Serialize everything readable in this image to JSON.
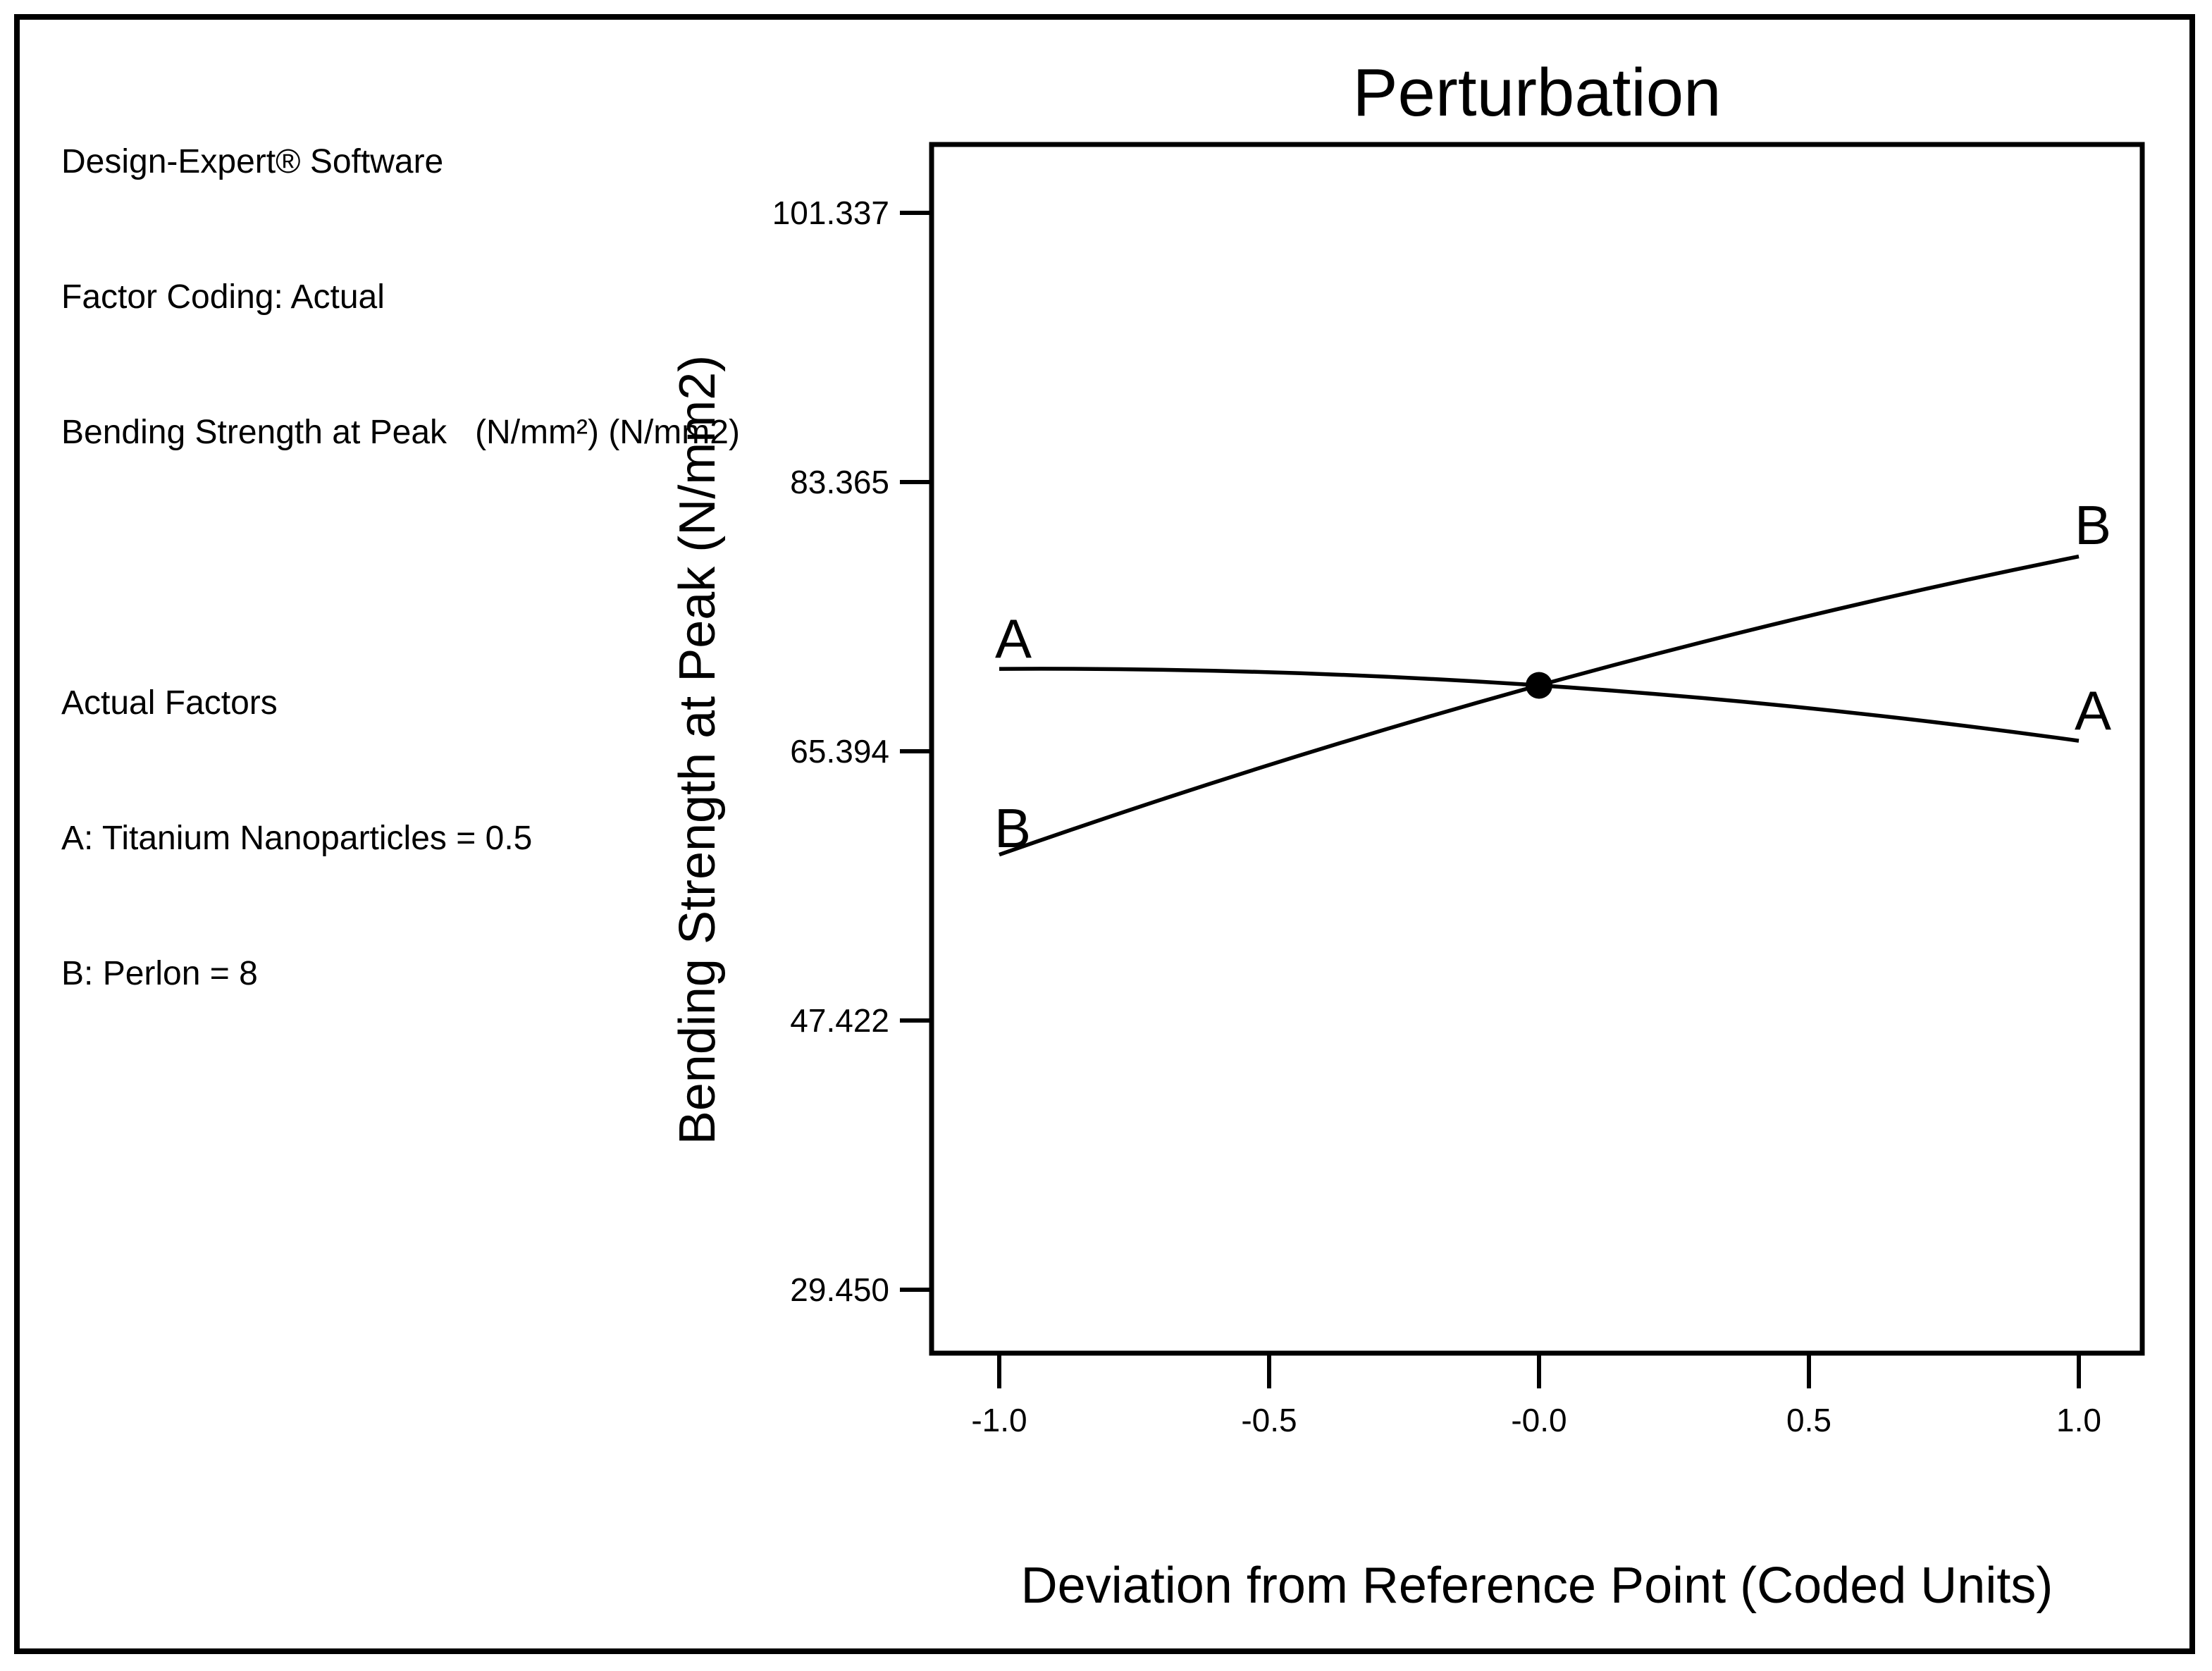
{
  "frame": {
    "background": "#ffffff",
    "border_color": "#000000"
  },
  "legend_panel": {
    "software": "Design-Expert® Software",
    "factor_coding": "Factor Coding: Actual",
    "response": "Bending Strength at Peak   (N/mm²) (N/mm2)",
    "actual_factors_heading": "Actual Factors",
    "factor_a": "A: Titanium Nanoparticles = 0.5",
    "factor_b": "B: Perlon = 8"
  },
  "chart_data": {
    "type": "line",
    "title": "Perturbation",
    "xlabel": "Deviation from Reference Point (Coded Units)",
    "ylabel": "Bending Strength at Peak (N/mm2)",
    "x": [
      -1.0,
      0.0,
      1.0
    ],
    "series": [
      {
        "name": "A",
        "factor": "Titanium Nanoparticles",
        "values": [
          70.9,
          69.8,
          66.1
        ]
      },
      {
        "name": "B",
        "factor": "Perlon",
        "values": [
          58.5,
          69.8,
          78.4
        ]
      }
    ],
    "reference_point": {
      "x": 0.0,
      "y": 69.8
    },
    "x_tick_labels": [
      "-1.0",
      "-0.5",
      "-0.0",
      "0.5",
      "1.0"
    ],
    "y_tick_labels": [
      "101.337",
      "83.365",
      "65.394",
      "47.422",
      "29.450"
    ],
    "xlim": [
      -1.13,
      1.12
    ],
    "ylim": [
      25.2,
      105.9
    ],
    "grid": false,
    "line_color": "#000000",
    "legend_position": "in-plot-endpoint-labels"
  }
}
